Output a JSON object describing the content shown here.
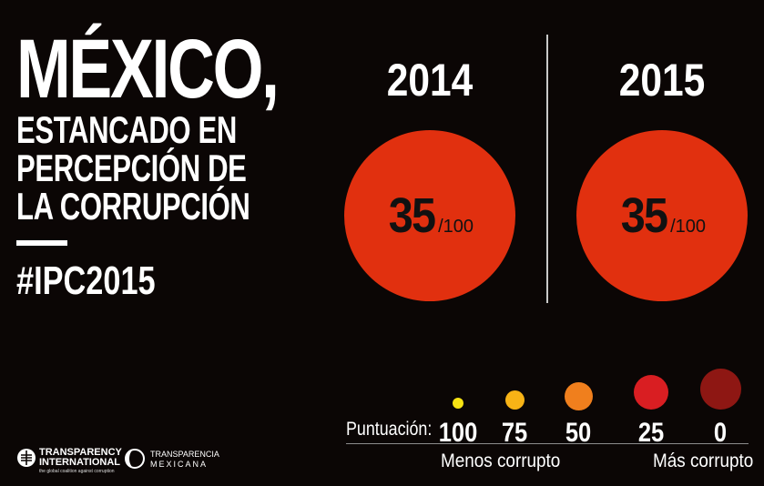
{
  "headline": {
    "title": "MÉXICO,",
    "subtitle_lines": [
      "ESTANCADO EN",
      "PERCEPCIÓN DE",
      "LA CORRUPCIÓN"
    ],
    "hashtag": "#IPC2015"
  },
  "years": [
    {
      "year": "2014",
      "score": "35",
      "scale": "/100"
    },
    {
      "year": "2015",
      "score": "35",
      "scale": "/100"
    }
  ],
  "scale": {
    "label": "Puntuación:",
    "values": [
      "100",
      "75",
      "50",
      "25",
      "0"
    ],
    "left_caption": "Menos corrupto",
    "right_caption": "Más corrupto"
  },
  "logos": {
    "ti_line1": "TRANSPARENCY",
    "ti_line2": "INTERNATIONAL",
    "ti_tagline": "the global coalition against corruption",
    "tm_line1": "TRANSPARENCIA",
    "tm_line2": "MEXICANA"
  },
  "colors": {
    "background": "#0b0605",
    "circle": "#e1300f",
    "scale_dots": [
      "#f7e313",
      "#f8b316",
      "#f07f1d",
      "#d91e22",
      "#8e1713"
    ]
  }
}
